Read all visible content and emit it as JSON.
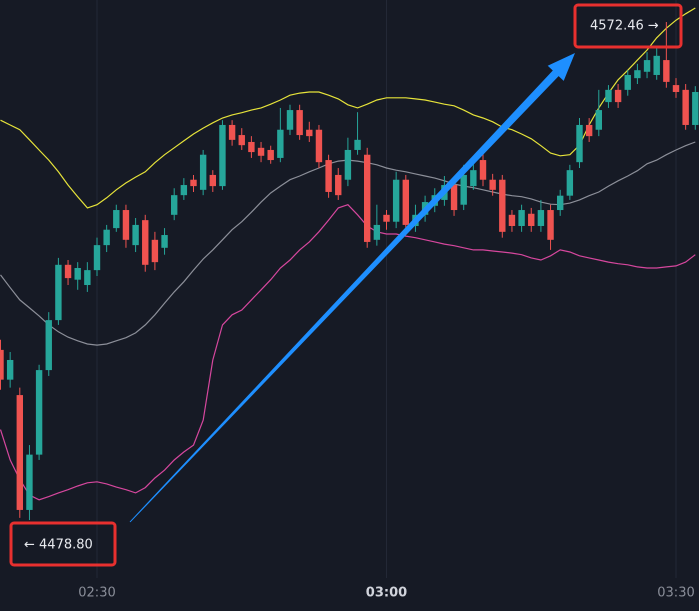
{
  "chart_data": {
    "type": "candlestick",
    "categories": [
      null,
      null,
      null,
      null,
      null,
      null,
      null,
      null,
      null,
      null,
      "02:30",
      null,
      null,
      null,
      null,
      null,
      null,
      null,
      null,
      null,
      null,
      null,
      null,
      null,
      null,
      null,
      null,
      null,
      null,
      null,
      null,
      null,
      null,
      null,
      null,
      null,
      null,
      null,
      null,
      null,
      "03:00",
      null,
      null,
      null,
      null,
      null,
      null,
      null,
      null,
      null,
      null,
      null,
      null,
      null,
      null,
      null,
      null,
      null,
      null,
      null,
      null,
      null,
      null,
      null,
      null,
      null,
      null,
      null,
      null,
      null,
      "03:30",
      null,
      null
    ],
    "open": [
      4510.8,
      4505.2,
      4502.3,
      4480.7,
      4491.1,
      4507.0,
      4516.4,
      4526.8,
      4524.0,
      4523.0,
      4525.8,
      4530.5,
      4533.7,
      4537.1,
      4530.5,
      4535.2,
      4531.5,
      4530.0,
      4536.2,
      4539.9,
      4542.8,
      4540.9,
      4543.7,
      4541.6,
      4553.1,
      4551.2,
      4549.9,
      4548.8,
      4548.4,
      4546.9,
      4552.2,
      4555.9,
      4552.2,
      4552.2,
      4546.5,
      4543.7,
      4542.8,
      4548.4,
      4547.5,
      4531.5,
      4536.2,
      4534.9,
      4542.8,
      4534.1,
      4536.2,
      4537.9,
      4539.0,
      4541.8,
      4538.1,
      4541.6,
      4546.5,
      4542.8,
      4542.8,
      4536.2,
      4534.1,
      4536.4,
      4534.1,
      4537.1,
      4537.1,
      4539.8,
      4546.1,
      4553.1,
      4552.2,
      4557.4,
      4559.7,
      4559.7,
      4561.9,
      4563.1,
      4562.5,
      4565.3,
      4560.6,
      4559.7,
      4553.1
    ],
    "high": [
      4512.7,
      4510.4,
      4503.7,
      4492.9,
      4508.0,
      4517.9,
      4528.1,
      4527.7,
      4527.3,
      4527.3,
      4531.9,
      4534.3,
      4538.1,
      4538.1,
      4535.6,
      4536.2,
      4533.0,
      4533.7,
      4541.2,
      4543.1,
      4543.7,
      4548.4,
      4544.6,
      4554.0,
      4554.0,
      4552.5,
      4551.0,
      4549.9,
      4549.2,
      4556.3,
      4556.9,
      4556.9,
      4553.7,
      4553.1,
      4547.5,
      4545.0,
      4550.7,
      4555.5,
      4548.8,
      4538.1,
      4537.1,
      4544.3,
      4543.7,
      4538.1,
      4539.8,
      4541.2,
      4543.5,
      4543.1,
      4545.6,
      4546.1,
      4548.4,
      4543.9,
      4543.7,
      4537.1,
      4538.1,
      4537.5,
      4539.0,
      4538.1,
      4540.9,
      4545.6,
      4554.4,
      4554.4,
      4559.7,
      4560.6,
      4560.8,
      4563.4,
      4564.6,
      4566.8,
      4567.6,
      4572.46,
      4561.9,
      4560.8,
      4560.4
    ],
    "low": [
      4503.3,
      4503.7,
      4479.2,
      4478.8,
      4490.1,
      4505.9,
      4515.5,
      4523.0,
      4522.1,
      4521.7,
      4524.7,
      4529.2,
      4533.0,
      4530.0,
      4529.2,
      4525.5,
      4525.8,
      4528.7,
      4535.2,
      4539.0,
      4540.5,
      4539.9,
      4540.5,
      4540.9,
      4549.2,
      4548.4,
      4546.9,
      4546.1,
      4545.8,
      4546.1,
      4551.2,
      4550.3,
      4549.9,
      4545.0,
      4539.4,
      4539.0,
      4541.6,
      4547.5,
      4530.0,
      4530.4,
      4533.4,
      4533.7,
      4533.0,
      4533.0,
      4534.9,
      4536.7,
      4537.9,
      4536.0,
      4537.1,
      4540.9,
      4541.6,
      4539.8,
      4531.9,
      4533.0,
      4533.0,
      4533.0,
      4533.0,
      4529.6,
      4536.0,
      4539.0,
      4545.0,
      4549.9,
      4551.0,
      4556.3,
      4556.3,
      4558.6,
      4560.8,
      4561.9,
      4561.6,
      4560.1,
      4558.2,
      4552.2,
      4552.2
    ],
    "close": [
      4505.2,
      4508.9,
      4480.7,
      4491.1,
      4507.0,
      4516.4,
      4526.8,
      4524.3,
      4526.2,
      4525.8,
      4530.5,
      4533.4,
      4537.1,
      4531.5,
      4534.3,
      4526.8,
      4527.3,
      4532.4,
      4539.9,
      4541.8,
      4541.6,
      4547.5,
      4541.6,
      4553.1,
      4550.3,
      4549.3,
      4548.0,
      4547.3,
      4546.5,
      4552.2,
      4555.9,
      4551.2,
      4551.0,
      4546.1,
      4540.5,
      4539.9,
      4548.4,
      4550.3,
      4531.1,
      4534.3,
      4534.9,
      4542.8,
      4534.3,
      4536.2,
      4538.6,
      4539.9,
      4541.8,
      4537.1,
      4543.7,
      4544.6,
      4542.8,
      4540.9,
      4533.0,
      4534.1,
      4537.1,
      4534.1,
      4537.1,
      4531.5,
      4539.8,
      4544.6,
      4553.1,
      4551.0,
      4555.9,
      4559.7,
      4557.4,
      4562.5,
      4563.4,
      4565.3,
      4566.1,
      4561.2,
      4559.3,
      4553.1,
      4559.3
    ],
    "up_color": "#26a69a",
    "down_color": "#ef5350",
    "overlays": [
      {
        "color": "#e6e33a",
        "values": [
          4554.0,
          4553.1,
          4552.2,
          4550.3,
          4548.4,
          4546.5,
          4544.3,
          4541.8,
          4539.6,
          4537.5,
          4538.1,
          4539.4,
          4540.9,
          4542.2,
          4543.3,
          4544.3,
          4546.0,
          4547.5,
          4548.8,
          4550.1,
          4551.4,
          4552.5,
          4553.5,
          4554.4,
          4555.0,
          4555.4,
          4555.9,
          4556.3,
          4557.0,
          4557.8,
          4558.7,
          4559.1,
          4559.3,
          4559.3,
          4558.7,
          4558.0,
          4556.9,
          4556.3,
          4557.0,
          4557.8,
          4558.2,
          4558.2,
          4558.2,
          4558.0,
          4557.8,
          4557.4,
          4557.0,
          4556.7,
          4555.9,
          4555.0,
          4554.4,
          4553.7,
          4552.7,
          4552.2,
          4551.4,
          4550.5,
          4549.2,
          4547.8,
          4547.3,
          4547.5,
          4549.3,
          4553.1,
          4556.3,
          4559.1,
          4561.6,
          4563.4,
          4565.3,
          4567.2,
          4569.5,
          4571.3,
          4572.8,
          4574.0,
          4575.1
        ]
      },
      {
        "color": "#8c8f99",
        "values": [
          4524.9,
          4522.5,
          4520.2,
          4518.7,
          4517.2,
          4515.5,
          4514.2,
          4513.2,
          4512.5,
          4511.9,
          4511.7,
          4511.9,
          4512.5,
          4513.1,
          4514.0,
          4515.5,
          4517.4,
          4519.6,
          4521.7,
          4523.6,
          4525.8,
          4527.9,
          4529.6,
          4531.5,
          4533.4,
          4534.9,
          4536.7,
          4538.6,
          4540.3,
          4541.6,
          4542.8,
          4543.5,
          4544.3,
          4545.0,
          4545.8,
          4546.3,
          4546.5,
          4546.3,
          4546.0,
          4545.6,
          4545.0,
          4544.6,
          4544.3,
          4543.9,
          4543.5,
          4543.1,
          4542.6,
          4542.0,
          4541.6,
          4541.3,
          4540.9,
          4540.5,
          4540.1,
          4539.8,
          4539.6,
          4539.2,
          4538.6,
          4538.2,
          4538.1,
          4538.4,
          4539.0,
          4539.8,
          4540.5,
          4541.6,
          4542.6,
          4543.5,
          4544.5,
          4545.8,
          4546.5,
          4547.5,
          4548.4,
          4549.2,
          4549.9
        ]
      },
      {
        "color": "#d6479e",
        "values": [
          4495.8,
          4490.1,
          4486.4,
          4483.5,
          4482.6,
          4483.2,
          4483.9,
          4484.5,
          4485.2,
          4485.8,
          4486.0,
          4485.6,
          4485.0,
          4484.5,
          4483.9,
          4484.9,
          4486.7,
          4488.2,
          4490.1,
          4491.6,
          4492.9,
          4497.6,
          4508.9,
          4515.5,
          4517.4,
          4518.3,
          4520.2,
          4522.1,
          4524.0,
          4526.2,
          4527.7,
          4529.6,
          4531.1,
          4533.0,
          4535.2,
          4537.5,
          4538.1,
          4536.2,
          4534.1,
          4533.0,
          4532.6,
          4532.6,
          4532.2,
          4531.9,
          4531.5,
          4531.1,
          4530.7,
          4530.4,
          4530.0,
          4529.6,
          4529.6,
          4529.4,
          4529.2,
          4529.0,
          4528.7,
          4528.1,
          4527.7,
          4528.5,
          4529.6,
          4529.2,
          4528.5,
          4528.1,
          4527.7,
          4527.3,
          4527.0,
          4526.8,
          4526.4,
          4526.2,
          4526.2,
          4526.4,
          4526.6,
          4527.3,
          4528.7
        ]
      }
    ],
    "ylim": [
      4467.9,
      4576.6
    ],
    "grid": true,
    "annotations": [
      "← 4478.80",
      "4572.46 →"
    ]
  }
}
